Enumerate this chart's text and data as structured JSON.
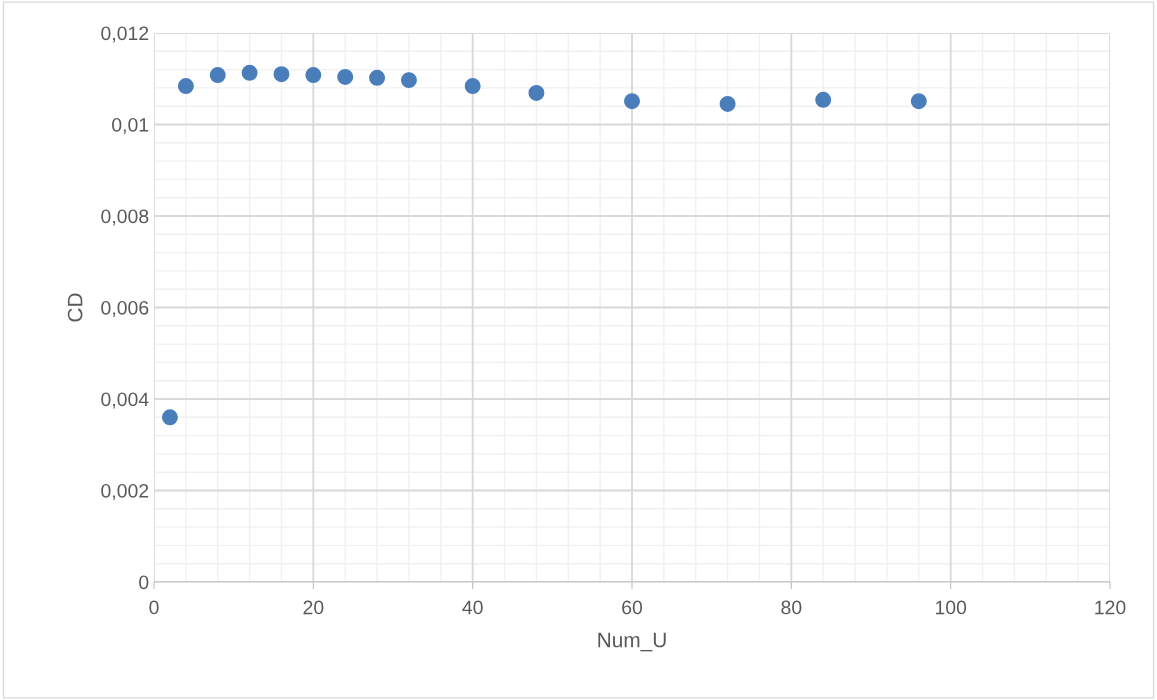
{
  "chart_data": {
    "type": "scatter",
    "xlabel": "Num_U",
    "ylabel": "CD",
    "x": [
      2,
      4,
      8,
      12,
      16,
      20,
      24,
      28,
      32,
      40,
      48,
      60,
      72,
      84,
      96
    ],
    "series": [
      {
        "color": "#4a7ebb",
        "values": [
          0.0036,
          0.01084,
          0.01108,
          0.01113,
          0.0111,
          0.01108,
          0.01104,
          0.01102,
          0.01097,
          0.01084,
          0.01069,
          0.01051,
          0.01045,
          0.01054,
          0.01051
        ]
      }
    ],
    "xlim": [
      0,
      120
    ],
    "xticks": [
      0,
      20,
      40,
      60,
      80,
      100,
      120
    ],
    "ylim": [
      0,
      0.012
    ],
    "yticks": [
      0,
      {
        "value": 0.002,
        "label": "0,002"
      },
      {
        "value": 0.004,
        "label": "0,004"
      },
      {
        "value": 0.006,
        "label": "0,006"
      },
      {
        "value": 0.008,
        "label": "0,008"
      },
      {
        "value": 0.01,
        "label": "0,01"
      },
      {
        "value": 0.012,
        "label": "0,012"
      }
    ],
    "grid": true,
    "marker": "circle",
    "legend": false
  }
}
